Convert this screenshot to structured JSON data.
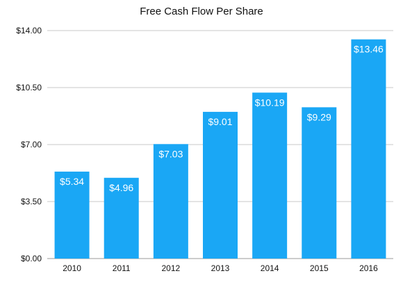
{
  "chart_data": {
    "type": "bar",
    "title": "Free Cash Flow Per Share",
    "xlabel": "",
    "ylabel": "",
    "categories": [
      "2010",
      "2011",
      "2012",
      "2013",
      "2014",
      "2015",
      "2016"
    ],
    "values": [
      5.34,
      4.96,
      7.03,
      9.01,
      10.19,
      9.29,
      13.46
    ],
    "data_labels": [
      "$5.34",
      "$4.96",
      "$7.03",
      "$9.01",
      "$10.19",
      "$9.29",
      "$13.46"
    ],
    "yticks": [
      "$0.00",
      "$3.50",
      "$7.00",
      "$10.50",
      "$14.00"
    ],
    "ytick_values": [
      0,
      3.5,
      7,
      10.5,
      14
    ],
    "ylim": [
      0,
      14
    ],
    "grid": true,
    "legend": "none",
    "bar_color": "#1aa7f5"
  }
}
